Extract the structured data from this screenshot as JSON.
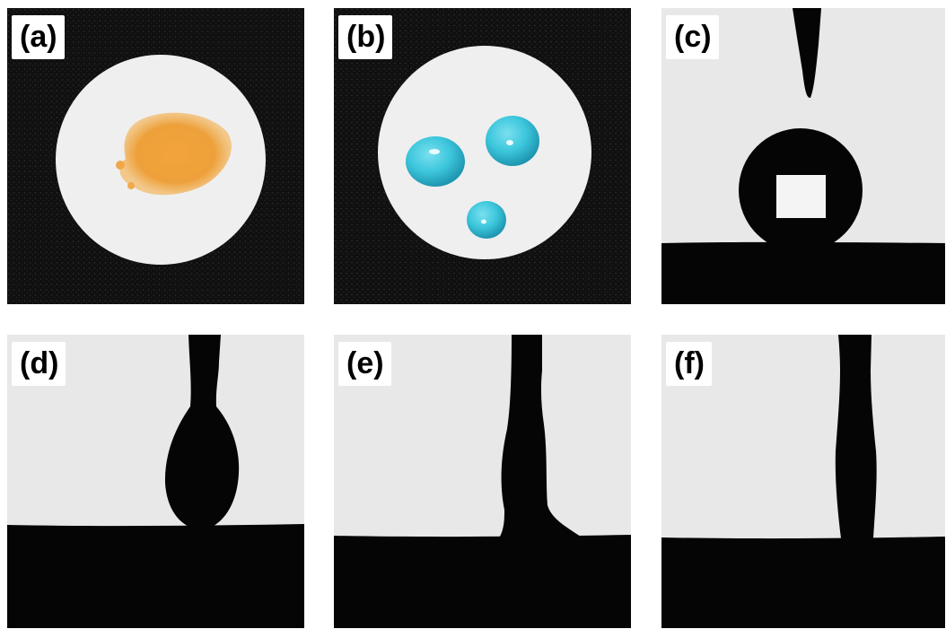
{
  "panels": [
    {
      "id": "a",
      "label": "(a)"
    },
    {
      "id": "b",
      "label": "(b)"
    },
    {
      "id": "c",
      "label": "(c)"
    },
    {
      "id": "d",
      "label": "(d)"
    },
    {
      "id": "e",
      "label": "(e)"
    },
    {
      "id": "f",
      "label": "(f)"
    }
  ],
  "colors": {
    "dark_background": "#0d0d0d",
    "disk_white": "#eeeeee",
    "orange_powder": "#f0a030",
    "water_droplet": "#3ec4da",
    "backlight": "#e8e8e8",
    "silhouette": "#050505"
  }
}
